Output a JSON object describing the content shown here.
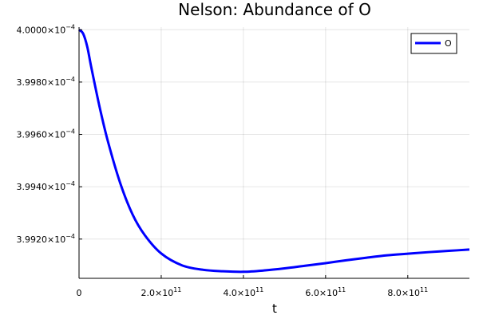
{
  "chart_data": {
    "type": "line",
    "title": "Nelson: Abundance of O",
    "xlabel": "t",
    "ylabel": "",
    "grid": true,
    "legend_position": "top-right",
    "xlim": [
      0,
      950000000000.0
    ],
    "ylim": [
      0.00039905,
      0.00040001
    ],
    "x_ticks": [
      {
        "value": 0,
        "mantissa": "0",
        "exp": ""
      },
      {
        "value": 200000000000.0,
        "mantissa": "2.0×10",
        "exp": "11"
      },
      {
        "value": 400000000000.0,
        "mantissa": "4.0×10",
        "exp": "11"
      },
      {
        "value": 600000000000.0,
        "mantissa": "6.0×10",
        "exp": "11"
      },
      {
        "value": 800000000000.0,
        "mantissa": "8.0×10",
        "exp": "11"
      }
    ],
    "y_ticks": [
      {
        "value": 0.0003992,
        "mantissa": "3.9920×10",
        "exp": "−4"
      },
      {
        "value": 0.0003994,
        "mantissa": "3.9940×10",
        "exp": "−4"
      },
      {
        "value": 0.0003996,
        "mantissa": "3.9960×10",
        "exp": "−4"
      },
      {
        "value": 0.0003998,
        "mantissa": "3.9980×10",
        "exp": "−4"
      },
      {
        "value": 0.0004,
        "mantissa": "4.0000×10",
        "exp": "−4"
      }
    ],
    "series": [
      {
        "name": "O",
        "color": "#0000ff",
        "x": [
          0,
          10000000000.0,
          20000000000.0,
          30000000000.0,
          50000000000.0,
          70000000000.0,
          100000000000.0,
          130000000000.0,
          160000000000.0,
          200000000000.0,
          250000000000.0,
          300000000000.0,
          350000000000.0,
          400000000000.0,
          450000000000.0,
          500000000000.0,
          550000000000.0,
          600000000000.0,
          650000000000.0,
          700000000000.0,
          750000000000.0,
          800000000000.0,
          850000000000.0,
          900000000000.0,
          950000000000.0
        ],
        "y": [
          0.0004,
          0.000399985,
          0.000399935,
          0.000399855,
          0.000399705,
          0.000399575,
          0.000399415,
          0.000399295,
          0.000399215,
          0.000399145,
          0.0003991,
          0.000399083,
          0.000399077,
          0.000399075,
          0.00039908,
          0.000399088,
          0.000399098,
          0.000399108,
          0.000399119,
          0.000399129,
          0.000399138,
          0.000399144,
          0.00039915,
          0.000399155,
          0.00039916
        ]
      }
    ]
  }
}
